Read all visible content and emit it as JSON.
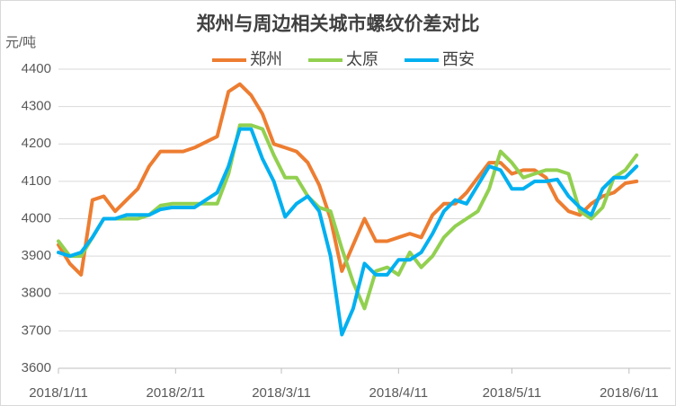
{
  "chart_data": {
    "type": "line",
    "title": "郑州与周边相关城市螺纹价差对比",
    "y_label": "元/吨",
    "x": [
      "2018/1/11",
      "2018/1/14",
      "2018/1/17",
      "2018/1/20",
      "2018/1/23",
      "2018/1/26",
      "2018/1/29",
      "2018/2/1",
      "2018/2/4",
      "2018/2/7",
      "2018/2/10",
      "2018/2/13",
      "2018/2/16",
      "2018/2/19",
      "2018/2/22",
      "2018/2/25",
      "2018/2/28",
      "2018/3/3",
      "2018/3/6",
      "2018/3/9",
      "2018/3/12",
      "2018/3/15",
      "2018/3/18",
      "2018/3/21",
      "2018/3/24",
      "2018/3/27",
      "2018/3/30",
      "2018/4/2",
      "2018/4/5",
      "2018/4/8",
      "2018/4/11",
      "2018/4/14",
      "2018/4/17",
      "2018/4/20",
      "2018/4/23",
      "2018/4/26",
      "2018/4/29",
      "2018/5/2",
      "2018/5/5",
      "2018/5/8",
      "2018/5/11",
      "2018/5/14",
      "2018/5/17",
      "2018/5/20",
      "2018/5/23",
      "2018/5/26",
      "2018/5/29",
      "2018/6/1",
      "2018/6/4",
      "2018/6/7",
      "2018/6/10",
      "2018/6/13"
    ],
    "series": [
      {
        "name": "郑州",
        "color": "#ED7D31",
        "values": [
          3930,
          3880,
          3850,
          4050,
          4060,
          4020,
          4050,
          4080,
          4140,
          4180,
          4180,
          4180,
          4190,
          4205,
          4220,
          4340,
          4360,
          4330,
          4280,
          4200,
          4190,
          4180,
          4150,
          4090,
          4000,
          3860,
          3930,
          4000,
          3940,
          3940,
          3950,
          3960,
          3950,
          4010,
          4040,
          4040,
          4070,
          4110,
          4150,
          4150,
          4120,
          4130,
          4130,
          4110,
          4050,
          4020,
          4010,
          4040,
          4060,
          4070,
          4095,
          4100
        ]
      },
      {
        "name": "太原",
        "color": "#92D050",
        "values": [
          3940,
          3900,
          3900,
          3950,
          4000,
          4000,
          4000,
          4000,
          4010,
          4035,
          4040,
          4040,
          4040,
          4040,
          4040,
          4120,
          4250,
          4250,
          4240,
          4170,
          4110,
          4110,
          4060,
          4030,
          4020,
          3920,
          3830,
          3760,
          3860,
          3870,
          3850,
          3910,
          3870,
          3900,
          3950,
          3980,
          4000,
          4020,
          4080,
          4180,
          4150,
          4110,
          4120,
          4130,
          4130,
          4120,
          4020,
          4000,
          4030,
          4110,
          4130,
          4170
        ]
      },
      {
        "name": "西安",
        "color": "#00B0F0",
        "values": [
          3910,
          3900,
          3910,
          3950,
          4000,
          4000,
          4010,
          4010,
          4010,
          4025,
          4030,
          4030,
          4030,
          4050,
          4070,
          4140,
          4240,
          4240,
          4160,
          4100,
          4005,
          4040,
          4060,
          4020,
          3900,
          3690,
          3760,
          3880,
          3850,
          3850,
          3890,
          3890,
          3910,
          3960,
          4020,
          4050,
          4040,
          4090,
          4140,
          4130,
          4080,
          4080,
          4100,
          4100,
          4105,
          4060,
          4030,
          4010,
          4080,
          4110,
          4110,
          4140
        ]
      }
    ],
    "xlim": [
      "2018/1/11",
      "2018/6/22"
    ],
    "xticks": [
      "2018/1/11",
      "2018/2/11",
      "2018/3/11",
      "2018/4/11",
      "2018/5/11",
      "2018/6/11"
    ],
    "ylim": [
      3600,
      4400
    ],
    "yticks": [
      3600,
      3700,
      3800,
      3900,
      4000,
      4100,
      4200,
      4300,
      4400
    ],
    "grid": true,
    "legend": "top"
  }
}
